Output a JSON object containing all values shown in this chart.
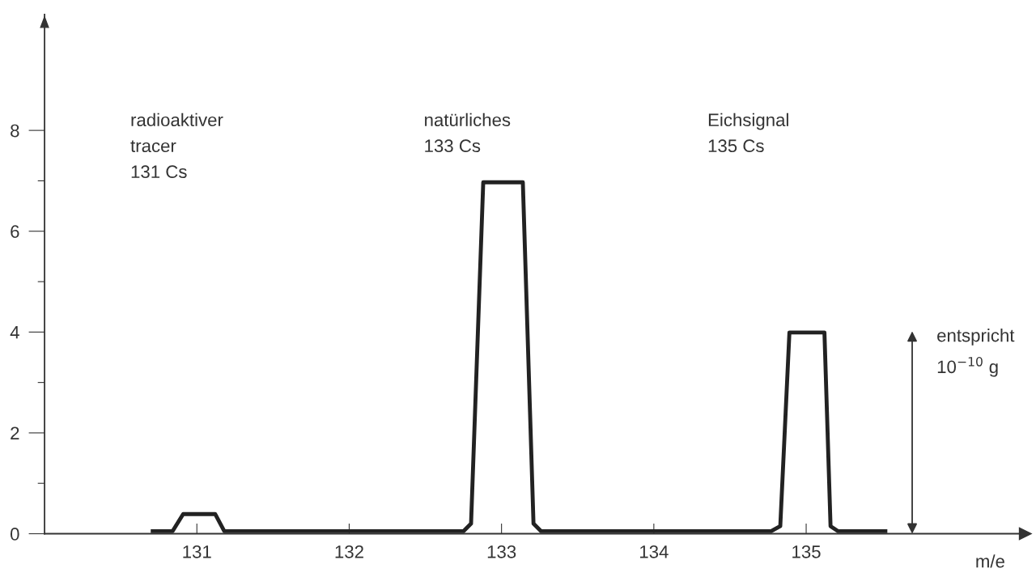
{
  "chart_data": {
    "type": "line",
    "xlabel": "m/e",
    "x": [
      130.71,
      130.84,
      130.91,
      131.12,
      131.18,
      132.75,
      132.8,
      132.88,
      133.14,
      133.21,
      133.26,
      134.77,
      134.83,
      134.89,
      135.12,
      135.16,
      135.21,
      135.52
    ],
    "series": [
      {
        "color": "#222222",
        "values": [
          0.05,
          0.05,
          0.39,
          0.39,
          0.05,
          0.05,
          0.2,
          6.97,
          6.97,
          0.2,
          0.05,
          0.05,
          0.15,
          3.99,
          3.99,
          0.15,
          0.05,
          0.05
        ]
      }
    ],
    "xlim": [
      130,
      136.4
    ],
    "xticks": [
      131,
      132,
      133,
      134,
      135
    ],
    "ylim": [
      0,
      10.3
    ],
    "yticks": [
      0,
      {
        "value": 1,
        "label": null
      },
      2,
      {
        "value": 3,
        "label": null
      },
      4,
      {
        "value": 5,
        "label": null
      },
      6,
      {
        "value": 7,
        "label": null
      },
      8
    ],
    "grid": false,
    "legend": false,
    "marker": "none",
    "line_style": "solid",
    "annotations": [
      "radioaktiver\ntracer\n131 Cs",
      "natürliches\n133 Cs",
      "Eichsignal\n135 Cs",
      "entspricht\n10$^{−10}$ g"
    ]
  }
}
